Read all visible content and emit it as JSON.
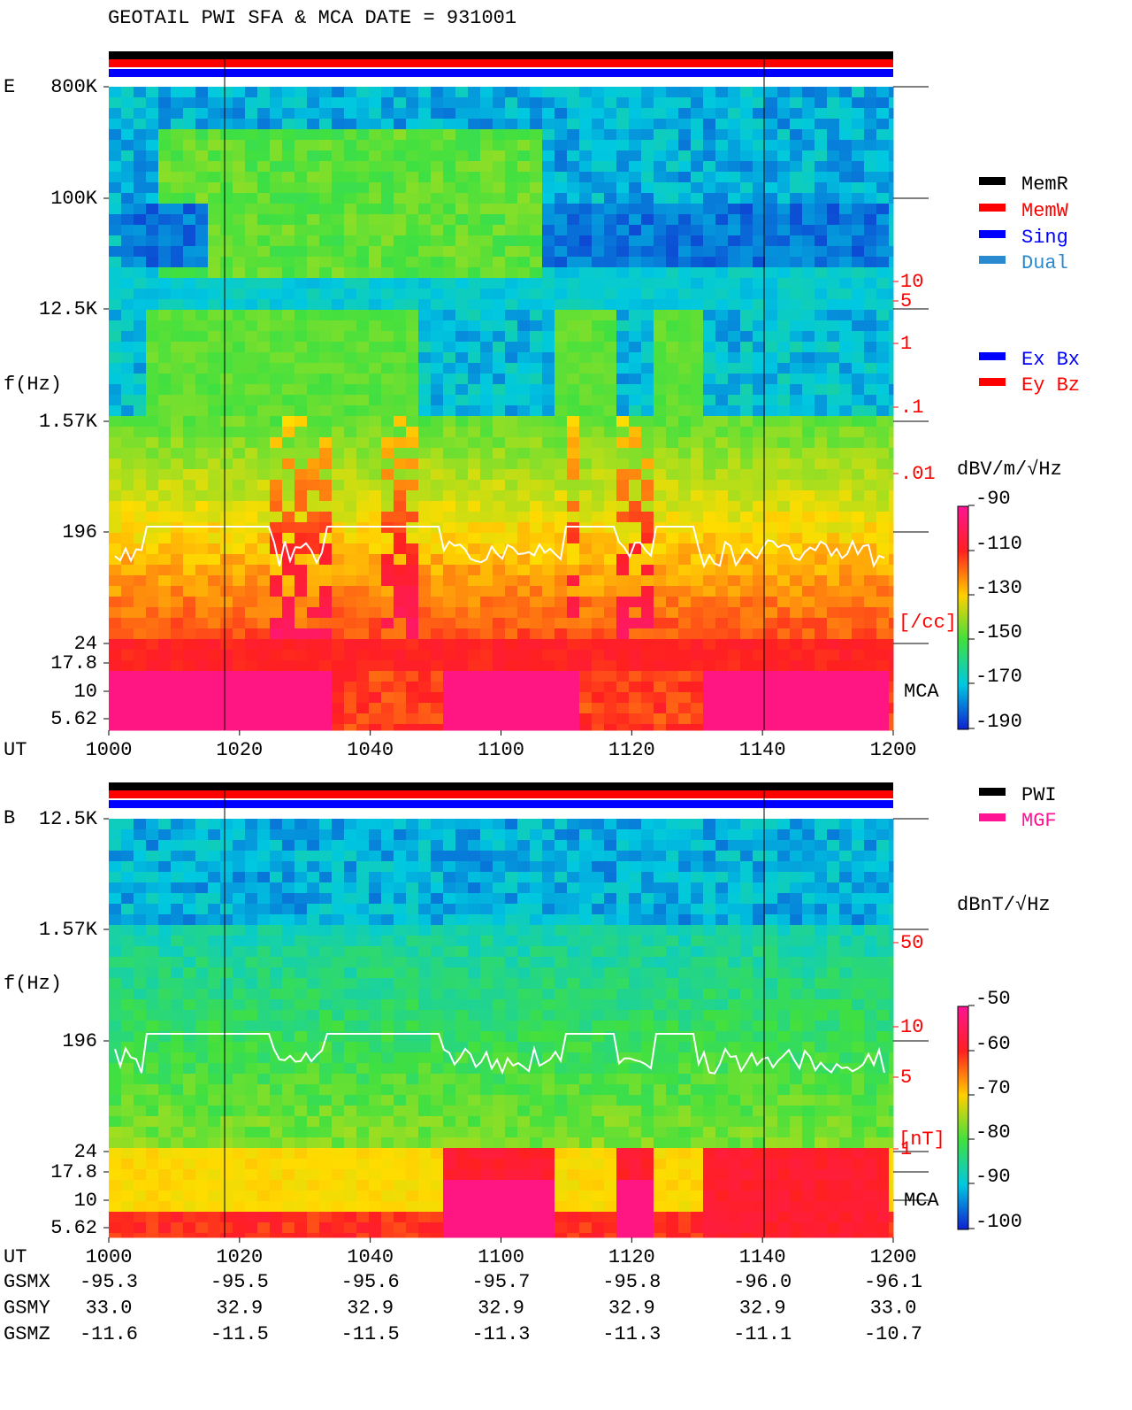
{
  "title": "GEOTAIL  PWI SFA & MCA   DATE = 931001",
  "panels": [
    {
      "label": "E",
      "y_axis_label": "f(Hz)",
      "freq_labels": [
        "800K",
        "100K",
        "12.5K",
        "1.57K",
        "196",
        "24",
        "17.8",
        "10",
        "5.62"
      ],
      "density_labels": [
        "10",
        "5",
        "1",
        ".1",
        ".01"
      ],
      "density_unit": "[/cc]",
      "mca_label": "MCA",
      "colorbar_unit": "dBV/m/√Hz",
      "colorbar_ticks": [
        "-90",
        "-110",
        "-130",
        "-150",
        "-170",
        "-190"
      ]
    },
    {
      "label": "B",
      "y_axis_label": "f(Hz)",
      "freq_labels": [
        "12.5K",
        "1.57K",
        "196",
        "24",
        "17.8",
        "10",
        "5.62"
      ],
      "density_labels": [
        "50",
        "10",
        "5",
        "1"
      ],
      "density_unit": "[nT]",
      "mca_label": "MCA",
      "colorbar_unit": "dBnT/√Hz",
      "colorbar_ticks": [
        "-50",
        "-60",
        "-70",
        "-80",
        "-90",
        "-100"
      ]
    }
  ],
  "time_axis": {
    "label": "UT",
    "ticks": [
      "1000",
      "1020",
      "1040",
      "1100",
      "1120",
      "1140",
      "1200"
    ]
  },
  "legend_mode": [
    "MemR",
    "MemW",
    "Sing",
    "Dual"
  ],
  "legend_antenna": [
    "Ex Bx",
    "Ey Bz"
  ],
  "legend_source": [
    "PWI",
    "MGF"
  ],
  "orbit": [
    {
      "label": "GSMX",
      "values": [
        "-95.3",
        "-95.5",
        "-95.6",
        "-95.7",
        "-95.8",
        "-96.0",
        "-96.1"
      ]
    },
    {
      "label": "GSMY",
      "values": [
        "33.0",
        "32.9",
        "32.9",
        "32.9",
        "32.9",
        "32.9",
        "33.0"
      ]
    },
    {
      "label": "GSMZ",
      "values": [
        "-11.6",
        "-11.5",
        "-11.5",
        "-11.3",
        "-11.3",
        "-11.1",
        "-10.7"
      ]
    }
  ]
}
